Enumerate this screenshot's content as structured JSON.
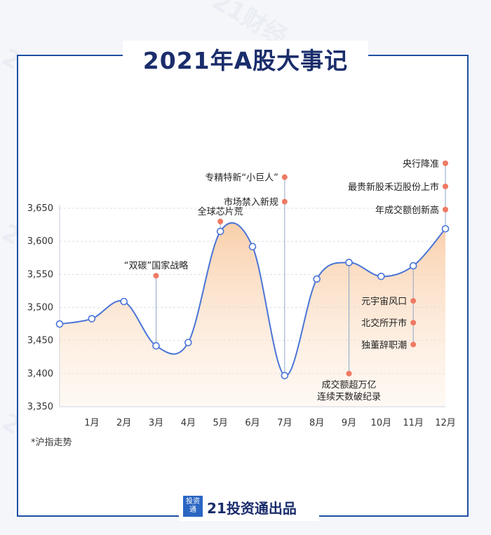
{
  "title": "2021年A股大事记",
  "note": "*沪指走势",
  "brand": {
    "logo_text": "投资通",
    "name": "21投资通出品"
  },
  "chart_data": {
    "type": "line",
    "title": "2021年A股大事记",
    "categories": [
      "",
      "1月",
      "2月",
      "3月",
      "4月",
      "5月",
      "6月",
      "7月",
      "8月",
      "9月",
      "10月",
      "11月",
      "12月"
    ],
    "values": [
      3475,
      3483,
      3509,
      3442,
      3447,
      3615,
      3592,
      3397,
      3543,
      3568,
      3547,
      3563,
      3619
    ],
    "ylim": [
      3350,
      3650
    ],
    "yticks": [
      "3,350",
      "3,400",
      "3,450",
      "3,500",
      "3,550",
      "3,600",
      "3,650"
    ],
    "yticks_values": [
      3350,
      3400,
      3450,
      3500,
      3550,
      3600,
      3650
    ],
    "grid": "horizontal dashed",
    "line_color": "#4a74d8",
    "fill_color": "#fbd9bd",
    "marker_color": "#f07a62",
    "annotations": [
      {
        "label": "“双碳”国家战略",
        "x_index": 3,
        "y": 3548
      },
      {
        "label": "全球芯片荒",
        "x_index": 5,
        "y": 3630
      },
      {
        "label": "专精特新“小巨人”",
        "x_index": 7,
        "y": 3697
      },
      {
        "label": "市场禁入新规",
        "x_index": 7,
        "y": 3660
      },
      {
        "label": "成交额超万亿",
        "label2": "连续天数破纪录",
        "x_index": 9,
        "y": 3400
      },
      {
        "label": "元宇宙风口",
        "x_index": 11,
        "y": 3510
      },
      {
        "label": "北交所开市",
        "x_index": 11,
        "y": 3477
      },
      {
        "label": "独董辞职潮",
        "x_index": 11,
        "y": 3444
      },
      {
        "label": "央行降准",
        "x_index": 12,
        "y": 3718
      },
      {
        "label": "最贵新股禾迈股份上市",
        "x_index": 12,
        "y": 3683
      },
      {
        "label": "年成交额创新高",
        "x_index": 12,
        "y": 3648
      }
    ]
  }
}
